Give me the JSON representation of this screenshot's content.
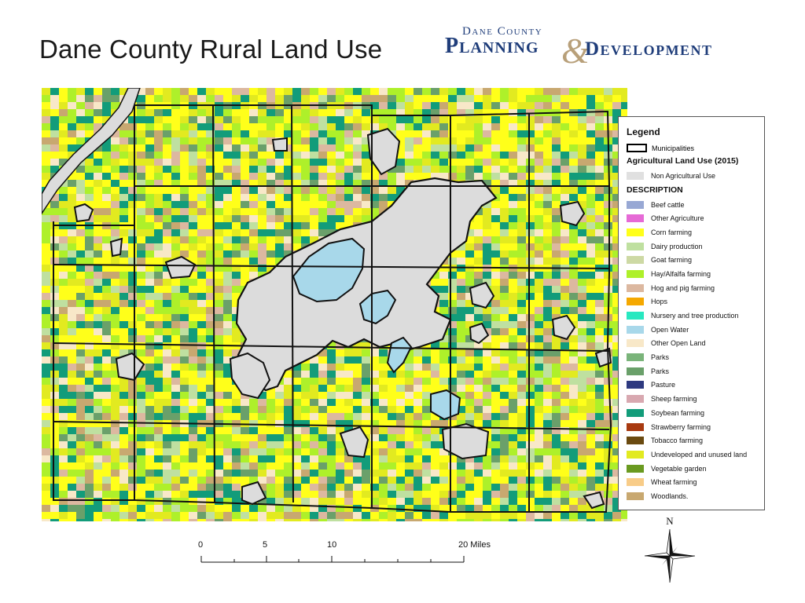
{
  "title": "Dane County Rural Land Use",
  "logo": {
    "line1": "Dane County",
    "line2": "Planning",
    "ampersand": "&",
    "line3": "Development",
    "color": "#1f3d7a"
  },
  "legend": {
    "title": "Legend",
    "municipalities_label": "Municipalities",
    "layer_title": "Agricultural Land Use (2015)",
    "non_ag": {
      "label": "Non Agricultural Use",
      "color": "#e0e0e0"
    },
    "description_label": "DESCRIPTION",
    "items": [
      {
        "label": "Beef cattle",
        "color": "#98a8d4"
      },
      {
        "label": "Other Agriculture",
        "color": "#e66ad6"
      },
      {
        "label": "Corn farming",
        "color": "#ffff1a"
      },
      {
        "label": "Dairy production",
        "color": "#bfe0a0"
      },
      {
        "label": "Goat farming",
        "color": "#cdd9a4"
      },
      {
        "label": "Hay/Alfalfa farming",
        "color": "#aef02a"
      },
      {
        "label": "Hog and pig farming",
        "color": "#dcb8a0"
      },
      {
        "label": "Hops",
        "color": "#f5a800"
      },
      {
        "label": "Nursery and tree production",
        "color": "#28e8c0"
      },
      {
        "label": "Open Water",
        "color": "#a8d8ea"
      },
      {
        "label": "Other Open Land",
        "color": "#f8e8c8"
      },
      {
        "label": "Parks",
        "color": "#7ab47a"
      },
      {
        "label": "Parks",
        "color": "#6aa06a"
      },
      {
        "label": "Pasture",
        "color": "#2e3a80"
      },
      {
        "label": "Sheep farming",
        "color": "#d8a8b0"
      },
      {
        "label": "Soybean farming",
        "color": "#129c7a"
      },
      {
        "label": "Strawberry farming",
        "color": "#a83a10"
      },
      {
        "label": "Tobacco farming",
        "color": "#6a4a10"
      },
      {
        "label": "Undeveloped and unused land",
        "color": "#e2ea20"
      },
      {
        "label": "Vegetable garden",
        "color": "#6a9a20"
      },
      {
        "label": "Wheat farming",
        "color": "#f8cc88"
      },
      {
        "label": "Woodlands.",
        "color": "#c8a870"
      }
    ]
  },
  "scale": {
    "ticks": [
      "0",
      "5",
      "10",
      "20 Miles"
    ],
    "units": "Miles"
  },
  "north_label": "N"
}
